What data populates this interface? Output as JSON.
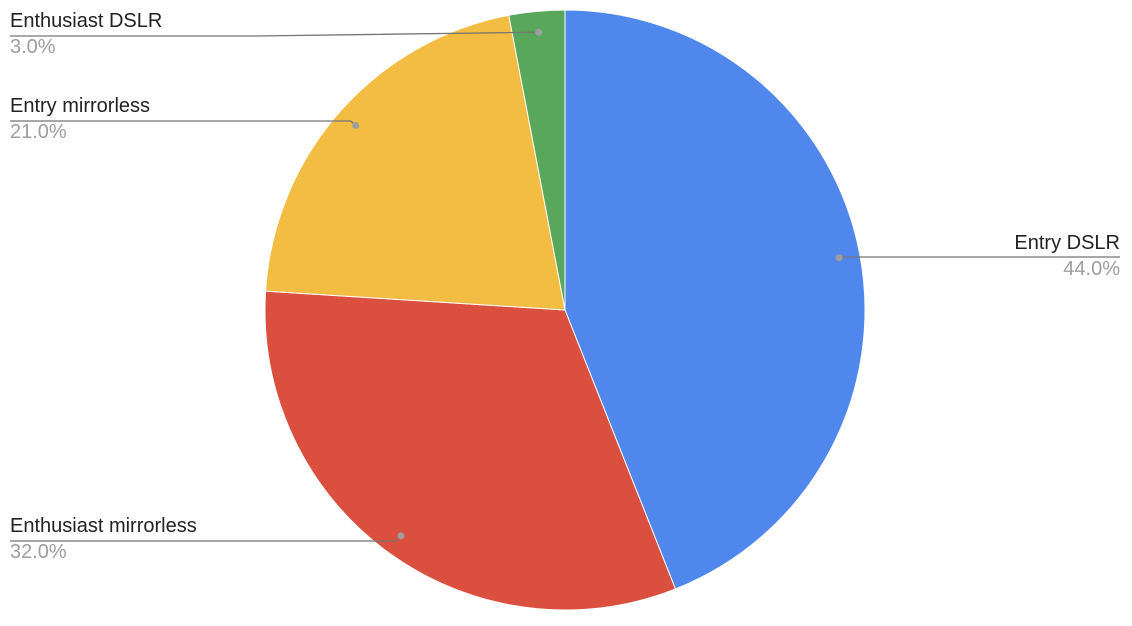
{
  "chart_data": {
    "type": "pie",
    "title": "",
    "start": "top",
    "direction": "clockwise",
    "legend": "none",
    "slices": [
      {
        "label": "Entry DSLR",
        "value": 44.0,
        "display": "44.0%",
        "color": "#5087EC"
      },
      {
        "label": "Enthusiast mirrorless",
        "value": 32.0,
        "display": "32.0%",
        "color": "#DB4F3F"
      },
      {
        "label": "Entry mirrorless",
        "value": 21.0,
        "display": "21.0%",
        "color": "#F3BC42"
      },
      {
        "label": "Enthusiast DSLR",
        "value": 3.0,
        "display": "3.0%",
        "color": "#58A75B"
      }
    ]
  }
}
